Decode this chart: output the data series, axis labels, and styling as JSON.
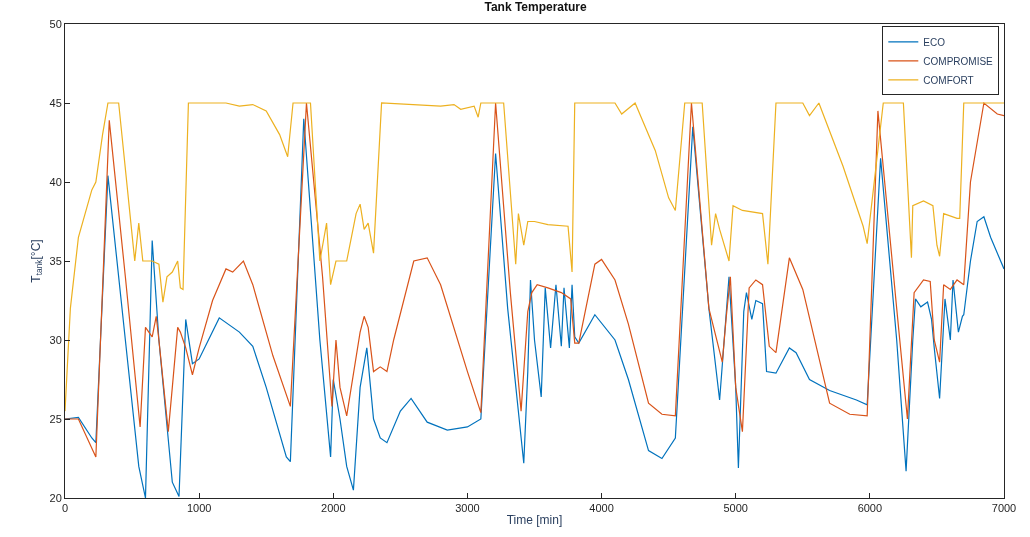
{
  "chart_data": {
    "type": "line",
    "title": "Tank Temperature",
    "xlabel": "Time [min]",
    "ylabel": "T$_{tank}$[°C]",
    "xlim": [
      0,
      7000
    ],
    "xticks": [
      0,
      1000,
      2000,
      3000,
      4000,
      5000,
      6000,
      7000
    ],
    "ylim": [
      20,
      50
    ],
    "yticks": [
      20,
      25,
      30,
      35,
      40,
      45,
      50
    ],
    "legend": "top right",
    "marker": "none",
    "line_style": "solid",
    "series": [
      {
        "name": "ECO",
        "color": "#0072bd",
        "x": [
          0,
          100,
          200,
          230,
          320,
          450,
          550,
          600,
          650,
          700,
          800,
          850,
          900,
          950,
          1000,
          1150,
          1300,
          1400,
          1500,
          1650,
          1680,
          1780,
          1900,
          1980,
          2000,
          2050,
          2100,
          2150,
          2200,
          2250,
          2300,
          2350,
          2400,
          2500,
          2580,
          2700,
          2850,
          3000,
          3100,
          3210,
          3300,
          3420,
          3450,
          3470,
          3500,
          3550,
          3580,
          3620,
          3660,
          3700,
          3720,
          3760,
          3780,
          3800,
          3830,
          3950,
          4100,
          4200,
          4350,
          4450,
          4550,
          4680,
          4800,
          4880,
          4950,
          5000,
          5020,
          5060,
          5080,
          5120,
          5150,
          5200,
          5230,
          5300,
          5400,
          5450,
          5550,
          5700,
          5900,
          5980,
          6080,
          6200,
          6270,
          6320,
          6340,
          6380,
          6430,
          6460,
          6480,
          6520,
          6560,
          6600,
          6620,
          6660,
          6690,
          6700,
          6750,
          6800,
          6850,
          6900,
          7000
        ],
        "values": [
          25,
          25.1,
          23.8,
          23.5,
          40.4,
          30,
          22,
          20,
          36.3,
          30,
          21,
          20.1,
          31.3,
          28.5,
          28.8,
          31.4,
          30.5,
          29.6,
          27,
          22.6,
          22.3,
          44,
          30,
          22.6,
          27.5,
          25,
          22,
          20.5,
          27,
          29.5,
          25,
          23.8,
          23.5,
          25.5,
          26.3,
          24.8,
          24.3,
          24.5,
          25,
          41.8,
          32,
          22.2,
          28,
          33.8,
          30,
          26.4,
          33.3,
          29.5,
          33.5,
          29.6,
          33.3,
          29.5,
          33.5,
          30.2,
          29.8,
          31.6,
          30,
          27.5,
          23,
          22.5,
          23.8,
          43.5,
          32,
          26.2,
          34,
          27,
          21.9,
          31.8,
          33,
          31.3,
          32.5,
          32.3,
          28,
          27.9,
          29.5,
          29.2,
          27.5,
          26.8,
          26.2,
          25.9,
          41.5,
          30,
          21.7,
          30,
          32.6,
          32.1,
          32.4,
          31.3,
          29.5,
          26.3,
          32.6,
          30,
          33.8,
          30.5,
          31.5,
          31.6,
          35,
          37.5,
          37.8,
          36.5,
          34.5
        ]
      },
      {
        "name": "COMPROMISE",
        "color": "#d95319",
        "x": [
          0,
          100,
          230,
          330,
          450,
          560,
          600,
          650,
          680,
          700,
          770,
          800,
          840,
          860,
          900,
          950,
          1000,
          1100,
          1200,
          1250,
          1330,
          1400,
          1550,
          1680,
          1800,
          1920,
          1990,
          2020,
          2050,
          2100,
          2200,
          2230,
          2260,
          2300,
          2350,
          2400,
          2450,
          2600,
          2700,
          2800,
          3000,
          3100,
          3210,
          3320,
          3400,
          3450,
          3480,
          3520,
          3600,
          3700,
          3770,
          3800,
          3830,
          3950,
          4000,
          4100,
          4200,
          4350,
          4450,
          4550,
          4670,
          4800,
          4900,
          4930,
          4960,
          5000,
          5050,
          5100,
          5150,
          5200,
          5250,
          5300,
          5400,
          5500,
          5700,
          5850,
          5980,
          6060,
          6200,
          6280,
          6330,
          6400,
          6450,
          6480,
          6520,
          6550,
          6600,
          6650,
          6700,
          6750,
          6850,
          6950,
          7000
        ],
        "values": [
          25,
          25,
          22.6,
          43.9,
          34,
          24.5,
          30.8,
          30.2,
          31.5,
          30,
          24.2,
          27,
          30.8,
          30.5,
          29.5,
          27.8,
          29.5,
          32.5,
          34.5,
          34.3,
          35,
          33.5,
          29,
          25.8,
          45,
          34,
          25.8,
          30,
          27,
          25.2,
          30.5,
          31.5,
          30.8,
          28,
          28.3,
          28,
          30,
          35,
          35.2,
          33.5,
          28,
          25.4,
          45,
          33,
          25.5,
          31.8,
          33,
          33.5,
          33.3,
          33,
          32.6,
          29.8,
          29.8,
          34.8,
          35.1,
          33.8,
          31,
          26,
          25.3,
          25.2,
          45,
          32,
          28.6,
          31.5,
          34,
          27,
          24.2,
          33.3,
          33.8,
          33.5,
          29.6,
          29.2,
          35.2,
          33.2,
          26,
          25.3,
          25.2,
          44.5,
          32,
          25,
          33,
          33.8,
          33.7,
          30,
          28.6,
          33.5,
          33.2,
          33.8,
          33.5,
          40,
          45,
          44.3,
          44.2
        ]
      },
      {
        "name": "COMFORT",
        "color": "#edb120",
        "x": [
          0,
          40,
          100,
          200,
          230,
          280,
          320,
          400,
          520,
          550,
          580,
          650,
          700,
          730,
          760,
          800,
          840,
          860,
          880,
          920,
          1200,
          1300,
          1400,
          1500,
          1600,
          1660,
          1700,
          1830,
          1900,
          1950,
          1980,
          2020,
          2100,
          2170,
          2200,
          2230,
          2260,
          2300,
          2360,
          2800,
          2900,
          2950,
          3050,
          3080,
          3100,
          3270,
          3360,
          3380,
          3420,
          3450,
          3500,
          3600,
          3750,
          3780,
          3800,
          4100,
          4150,
          4250,
          4400,
          4500,
          4550,
          4620,
          4750,
          4820,
          4850,
          4880,
          4950,
          4980,
          5050,
          5200,
          5240,
          5300,
          5500,
          5550,
          5620,
          5800,
          5950,
          5980,
          6100,
          6250,
          6310,
          6320,
          6400,
          6470,
          6500,
          6520,
          6550,
          6650,
          6670,
          6700,
          6850,
          6950,
          7000
        ],
        "values": [
          25.5,
          32,
          36.5,
          39.5,
          40,
          43,
          45,
          45,
          35,
          37.4,
          35,
          35,
          34.8,
          32.4,
          34,
          34.3,
          35,
          33.3,
          33.2,
          45,
          45,
          44.8,
          44.9,
          44.5,
          43,
          41.6,
          45,
          45,
          35,
          37.4,
          33.5,
          35,
          35,
          38,
          38.6,
          37,
          37.4,
          35.5,
          45,
          44.8,
          44.9,
          44.6,
          44.8,
          44.1,
          45,
          45,
          34.8,
          38,
          36,
          37.5,
          37.5,
          37.3,
          37.2,
          34.3,
          45,
          45,
          44.3,
          45,
          42,
          39,
          38.2,
          45,
          45,
          36,
          38,
          37,
          35,
          38.5,
          38.2,
          38,
          34.8,
          45,
          45,
          44.2,
          45,
          41,
          37.2,
          36.1,
          45,
          45,
          35.2,
          38.5,
          38.8,
          38.5,
          36,
          35.3,
          38,
          37.7,
          37.7,
          45,
          45,
          45,
          45
        ]
      }
    ]
  }
}
